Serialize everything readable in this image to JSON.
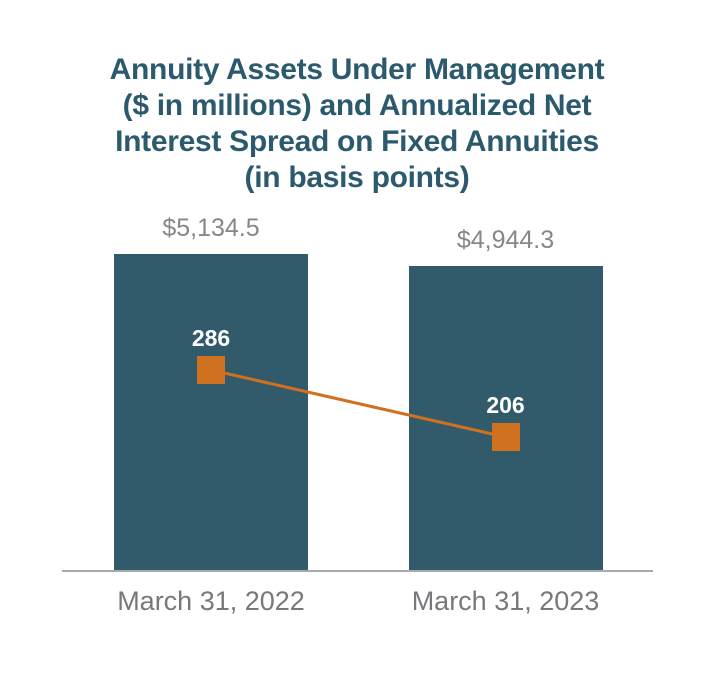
{
  "chart_data": {
    "type": "bar",
    "subtype": "bar-with-line-overlay",
    "title": "Annuity Assets Under Management ($ in millions) and Annualized Net Interest Spread on Fixed Annuities (in basis points)",
    "title_lines": [
      "Annuity Assets Under Management",
      "($ in millions) and Annualized Net",
      "Interest Spread on Fixed Annuities",
      "(in basis points)"
    ],
    "categories": [
      "March 31, 2022",
      "March 31, 2023"
    ],
    "series": [
      {
        "name": "Annuity Assets Under Management ($ in millions)",
        "type": "bar",
        "values": [
          5134.5,
          4944.3
        ],
        "labels": [
          "$5,134.5",
          "$4,944.3"
        ]
      },
      {
        "name": "Annualized Net Interest Spread on Fixed Annuities (in basis points)",
        "type": "line",
        "values": [
          286,
          206
        ],
        "labels": [
          "286",
          "206"
        ]
      }
    ],
    "legend": "none",
    "grid": false,
    "baseline_axis": true,
    "colors": {
      "bar": "#315a6b",
      "title": "#2b5a6e",
      "marker": "#d0711f",
      "connector_line": "#d0711f",
      "marker_label": "#ffffff",
      "value_label": "#85878a",
      "axis_label": "#77787b",
      "axis_line": "#a7a9ac",
      "background": "#ffffff"
    }
  }
}
